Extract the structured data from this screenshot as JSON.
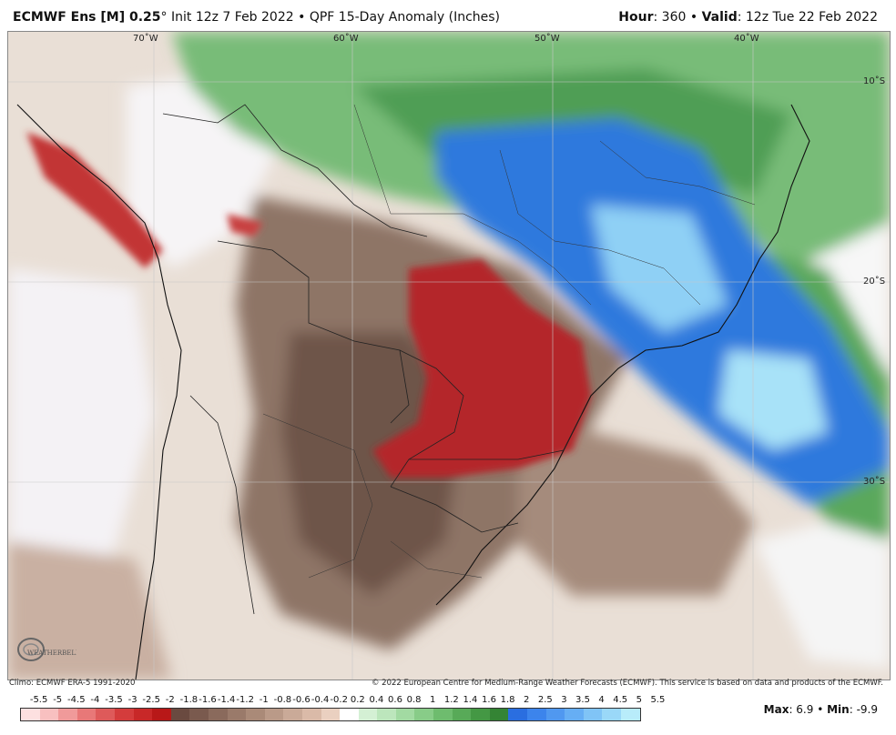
{
  "header": {
    "model": "ECMWF Ens [M] 0.25",
    "degree": "°",
    "init": " Init 12z 7 Feb 2022",
    "sep": " • ",
    "product": "QPF 15-Day Anomaly (Inches)",
    "hour_label": "Hour",
    "hour_value": ": 360",
    "valid_label": "Valid",
    "valid_value": ": 12z Tue 22 Feb 2022"
  },
  "map": {
    "lon_labels": [
      "70˚W",
      "60˚W",
      "50˚W",
      "40˚W"
    ],
    "lat_labels": [
      "10˚S",
      "20˚S",
      "30˚S"
    ]
  },
  "credits": {
    "climo": "Climo: ECMWF ERA-5 1991-2020",
    "copyright": "© 2022 European Centre for Medium-Range Weather Forecasts (ECMWF). This service is based on data and products of the ECMWF.",
    "logo_text": "WEATHERBELL"
  },
  "legend": {
    "labels": [
      "-5.5",
      "-5",
      "-4.5",
      "-4",
      "-3.5",
      "-3",
      "-2.5",
      "-2",
      "-1.8",
      "-1.6",
      "-1.4",
      "-1.2",
      "-1",
      "-0.8",
      "-0.6",
      "-0.4",
      "-0.2",
      "0.2",
      "0.4",
      "0.6",
      "0.8",
      "1",
      "1.2",
      "1.4",
      "1.6",
      "1.8",
      "2",
      "2.5",
      "3",
      "3.5",
      "4",
      "4.5",
      "5",
      "5.5"
    ],
    "colors": [
      "#fde0e0",
      "#f8c0c0",
      "#f09a9a",
      "#e87878",
      "#de5a5a",
      "#d43c3c",
      "#c82828",
      "#b81818",
      "#6a4a40",
      "#7a5a4e",
      "#8a6a5c",
      "#9a7a6a",
      "#aa8a78",
      "#ba9a88",
      "#caaa98",
      "#dabaa8",
      "#ead0c0",
      "#ffffff",
      "#d4f0d4",
      "#bce6bc",
      "#a2daa2",
      "#88cc88",
      "#6ebc6e",
      "#58aa58",
      "#449844",
      "#348434",
      "#2a6ee0",
      "#3c84ec",
      "#5098f0",
      "#66aef4",
      "#80c4f6",
      "#9ad8f8",
      "#b8ecfa"
    ]
  },
  "stats": {
    "max_label": "Max",
    "max_value": ": 6.9",
    "sep": " • ",
    "min_label": "Min",
    "min_value": ": -9.9"
  }
}
